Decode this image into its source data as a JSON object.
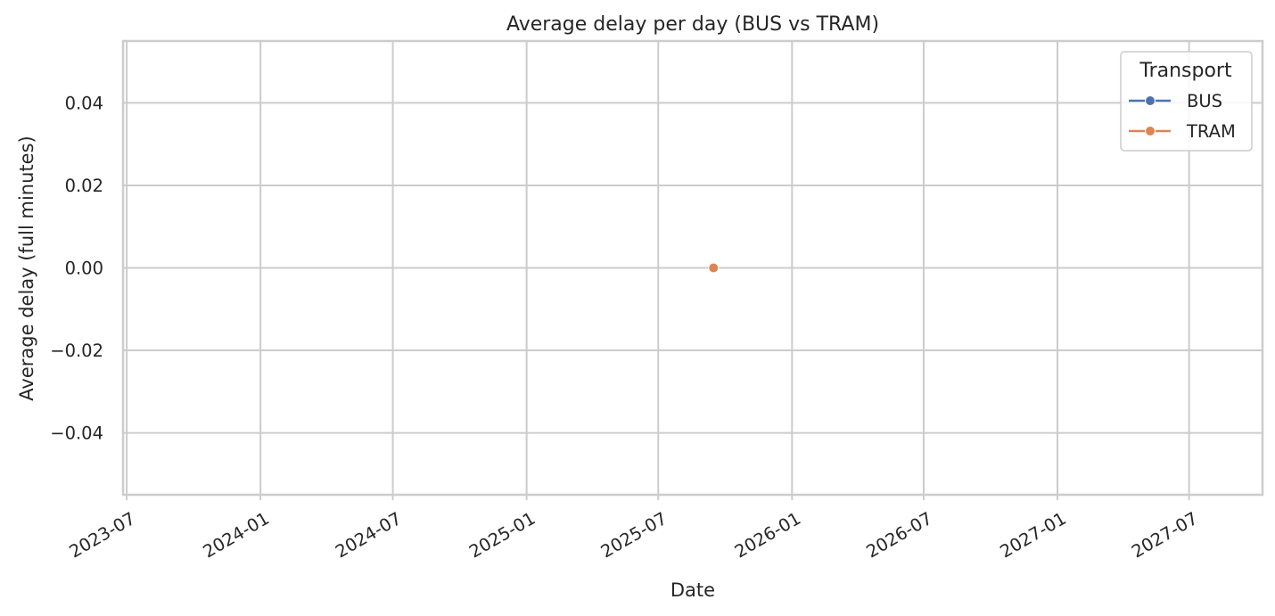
{
  "chart_data": {
    "type": "line",
    "title": "Average delay per day (BUS vs TRAM)",
    "xlabel": "Date",
    "ylabel": "Average delay (full minutes)",
    "x_axis_type": "date",
    "xlim": [
      "2023-06-26",
      "2027-10-10"
    ],
    "ylim": [
      -0.055,
      0.055
    ],
    "x_ticks": [
      "2023-07",
      "2024-01",
      "2024-07",
      "2025-01",
      "2025-07",
      "2026-01",
      "2026-07",
      "2027-01",
      "2027-07"
    ],
    "x_tick_dates": [
      "2023-07-01",
      "2024-01-01",
      "2024-07-01",
      "2025-01-01",
      "2025-07-01",
      "2026-01-01",
      "2026-07-01",
      "2027-01-01",
      "2027-07-01"
    ],
    "y_ticks": [
      0.04,
      0.02,
      0.0,
      -0.02,
      -0.04
    ],
    "y_tick_labels": [
      "0.04",
      "0.02",
      "0.00",
      "−0.02",
      "−0.04"
    ],
    "grid": true,
    "legend": {
      "title": "Transport",
      "placement": "top-right"
    },
    "series": [
      {
        "name": "BUS",
        "color": "#4c72b0",
        "marker": "circle",
        "points": []
      },
      {
        "name": "TRAM",
        "color": "#dd8452",
        "marker": "circle",
        "points": [
          {
            "x": "2025-09-15",
            "y": 0.0
          }
        ]
      }
    ]
  }
}
